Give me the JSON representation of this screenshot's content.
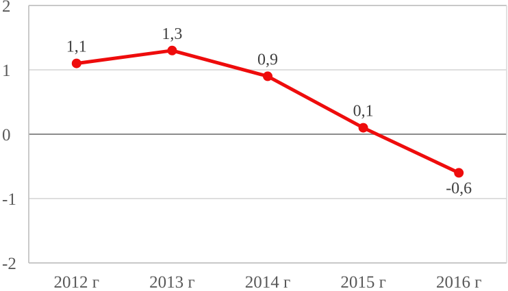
{
  "chart_data": {
    "type": "line",
    "title": "",
    "categories": [
      "2012 г",
      "2013 г",
      "2014 г",
      "2015 г",
      "2016 г"
    ],
    "series": [
      {
        "name": "series-1",
        "values": [
          1.1,
          1.3,
          0.9,
          0.1,
          -0.6
        ]
      }
    ],
    "point_labels": [
      "1,1",
      "1,3",
      "0,9",
      "0,1",
      "-0,6"
    ],
    "y_ticks": [
      2,
      1,
      0,
      -1,
      -2
    ],
    "y_tick_labels": [
      "2",
      "1",
      "0",
      "-1",
      "-2"
    ],
    "ylim": [
      -2,
      2
    ],
    "xlabel": "",
    "ylabel": "",
    "grid": true,
    "legend": false,
    "colors": {
      "line": "#ee0c0c",
      "marker": "#ee0c0c",
      "gridline": "#d9d9d9",
      "zero_line": "#8c8c8c",
      "axis_border": "#c0c0c0",
      "data_label": "#3f3f3f",
      "tick_label": "#595959",
      "background": "#ffffff"
    }
  }
}
